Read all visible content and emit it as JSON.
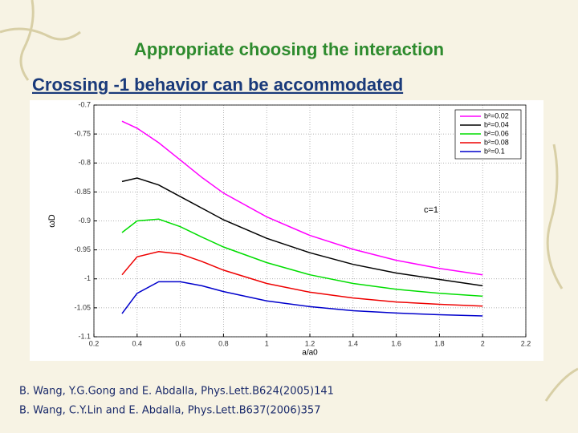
{
  "slide_title": "Appropriate choosing the interaction",
  "slide_subtitle": "Crossing -1 behavior can be accommodated",
  "references": [
    "B. Wang, Y.G.Gong and E. Abdalla, Phys.Lett.B624(2005)141",
    "B. Wang, C.Y.Lin and E. Abdalla, Phys.Lett.B637(2006)357"
  ],
  "chart_data": {
    "type": "line",
    "x_label": "a/a0",
    "y_label": "ωD",
    "annotation": "c=1",
    "x": [
      0.33,
      0.4,
      0.5,
      0.6,
      0.7,
      0.8,
      1.0,
      1.2,
      1.4,
      1.6,
      1.8,
      2.0
    ],
    "series": [
      {
        "name": "b²=0.02",
        "color": "#ff00ff",
        "values": [
          -0.728,
          -0.74,
          -0.765,
          -0.795,
          -0.825,
          -0.852,
          -0.893,
          -0.925,
          -0.949,
          -0.968,
          -0.982,
          -0.993
        ]
      },
      {
        "name": "b²=0.04",
        "color": "#000000",
        "values": [
          -0.832,
          -0.826,
          -0.838,
          -0.858,
          -0.878,
          -0.898,
          -0.93,
          -0.955,
          -0.975,
          -0.99,
          -1.001,
          -1.012
        ]
      },
      {
        "name": "b²=0.06",
        "color": "#00dd00",
        "values": [
          -0.92,
          -0.9,
          -0.897,
          -0.91,
          -0.928,
          -0.945,
          -0.972,
          -0.993,
          -1.008,
          -1.018,
          -1.025,
          -1.03
        ]
      },
      {
        "name": "b²=0.08",
        "color": "#ee0000",
        "values": [
          -0.993,
          -0.962,
          -0.953,
          -0.957,
          -0.97,
          -0.985,
          -1.008,
          -1.023,
          -1.033,
          -1.04,
          -1.044,
          -1.047
        ]
      },
      {
        "name": "b²=0.1",
        "color": "#0000cc",
        "values": [
          -1.06,
          -1.025,
          -1.005,
          -1.005,
          -1.012,
          -1.022,
          -1.038,
          -1.048,
          -1.055,
          -1.059,
          -1.062,
          -1.064
        ]
      }
    ],
    "xlim": [
      0.2,
      2.2
    ],
    "xticks": [
      0.2,
      0.4,
      0.6,
      0.8,
      1,
      1.2,
      1.4,
      1.6,
      1.8,
      2,
      2.2
    ],
    "ylim": [
      -1.1,
      -0.7
    ],
    "yticks": [
      -1.1,
      -1.05,
      -1,
      -0.95,
      -0.9,
      -0.85,
      -0.8,
      -0.75,
      -0.7
    ],
    "grid": true,
    "legend": "upper right"
  }
}
